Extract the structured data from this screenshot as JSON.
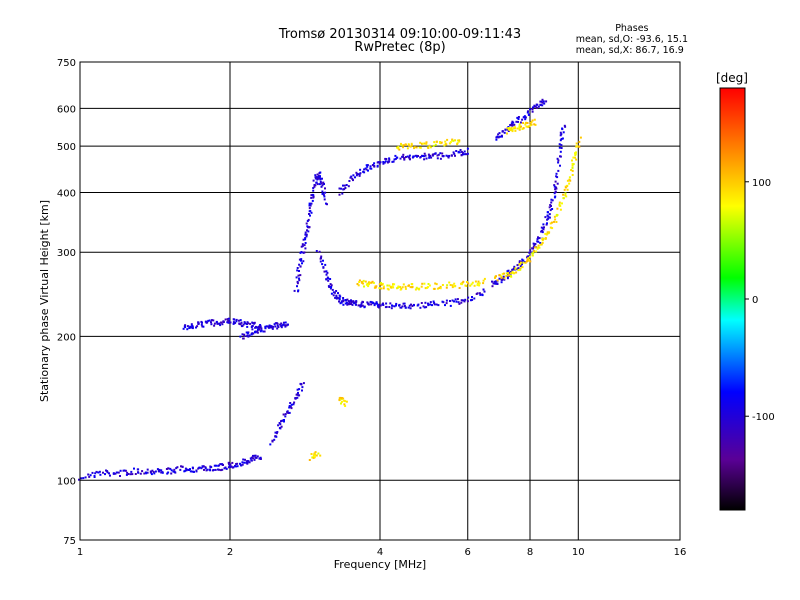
{
  "title": {
    "line1": "Tromsø 20130314 09:10:00-09:11:43",
    "line2": "RwPretec (8p)"
  },
  "phases": {
    "heading": "Phases",
    "o_mode": "mean, sd,O: -93.6, 15.1",
    "x_mode": "mean, sd,X:  86.7, 16.9"
  },
  "chart_data": {
    "type": "scatter",
    "xlabel": "Frequency [MHz]",
    "ylabel": "Stationary phase Virtual Height [km]",
    "xscale": "log",
    "yscale": "log",
    "xlim": [
      1,
      16
    ],
    "ylim": [
      75,
      750
    ],
    "xticks": [
      1,
      2,
      4,
      6,
      8,
      10,
      16
    ],
    "yticks": [
      75,
      100,
      200,
      300,
      400,
      500,
      600,
      750
    ],
    "grid": true,
    "colorbar": {
      "label": "[deg]",
      "range": [
        -180,
        180
      ],
      "ticks": [
        -100,
        0,
        100
      ],
      "colors": [
        "#000000",
        "#5a0096",
        "#0000ff",
        "#00ffff",
        "#00ff00",
        "#ffff00",
        "#ff0000"
      ]
    },
    "series": [
      {
        "mode": "O",
        "color_phase": -100,
        "segments": [
          {
            "x": [
              1.0,
              1.1,
              1.2,
              1.3,
              1.4,
              1.5,
              1.6,
              1.7,
              1.8,
              1.9,
              2.0,
              2.1,
              2.2,
              2.3
            ],
            "y": [
              102,
              104,
              104,
              105,
              105,
              105,
              106,
              106,
              106,
              107,
              108,
              109,
              111,
              113
            ]
          },
          {
            "x": [
              2.4,
              2.5,
              2.6,
              2.7,
              2.8
            ],
            "y": [
              120,
              130,
              140,
              150,
              160
            ]
          },
          {
            "x": [
              1.6,
              1.7,
              1.8,
              1.9,
              2.0,
              2.1,
              2.2,
              2.3
            ],
            "y": [
              210,
              212,
              214,
              215,
              216,
              214,
              212,
              210
            ]
          },
          {
            "x": [
              2.1,
              2.2,
              2.3,
              2.4,
              2.5,
              2.6
            ],
            "y": [
              200,
              205,
              208,
              210,
              212,
              215
            ]
          },
          {
            "x": [
              3.0,
              3.1,
              3.2,
              3.3,
              3.4,
              3.5,
              3.6,
              3.8,
              4.0,
              4.3,
              4.6,
              5.0,
              5.5,
              6.0,
              6.5
            ],
            "y": [
              300,
              270,
              250,
              240,
              237,
              236,
              235,
              234,
              234,
              233,
              233,
              234,
              236,
              240,
              250
            ]
          },
          {
            "x": [
              6.7,
              7.0,
              7.3,
              7.6,
              8.0,
              8.3,
              8.6,
              8.8,
              9.0,
              9.2,
              9.3
            ],
            "y": [
              258,
              265,
              275,
              285,
              300,
              320,
              350,
              380,
              420,
              500,
              560
            ]
          },
          {
            "x": [
              3.3,
              3.5,
              3.7,
              3.9,
              4.1,
              4.4,
              4.7,
              5.0,
              5.3,
              5.7,
              6.0
            ],
            "y": [
              400,
              430,
              450,
              460,
              470,
              475,
              478,
              478,
              480,
              485,
              490
            ]
          },
          {
            "x": [
              2.7,
              2.75,
              2.8,
              2.85,
              2.9,
              2.95,
              3.0,
              3.05,
              3.1
            ],
            "y": [
              250,
              280,
              310,
              340,
              380,
              420,
              440,
              420,
              380
            ]
          },
          {
            "x": [
              6.8,
              7.1,
              7.4,
              7.8,
              8.2,
              8.6
            ],
            "y": [
              520,
              540,
              560,
              580,
              610,
              625
            ]
          }
        ]
      },
      {
        "mode": "X",
        "color_phase": 90,
        "segments": [
          {
            "x": [
              3.6,
              3.8,
              4.0,
              4.3,
              4.6,
              5.0,
              5.5,
              6.0,
              6.5
            ],
            "y": [
              260,
              258,
              256,
              255,
              255,
              256,
              257,
              258,
              262
            ]
          },
          {
            "x": [
              6.8,
              7.2,
              7.6,
              8.0,
              8.4,
              8.8,
              9.2,
              9.5,
              9.8,
              10.0
            ],
            "y": [
              265,
              270,
              280,
              295,
              315,
              340,
              380,
              420,
              470,
              520
            ]
          },
          {
            "x": [
              4.3,
              4.6,
              5.0,
              5.4,
              5.8
            ],
            "y": [
              500,
              505,
              505,
              510,
              515
            ]
          },
          {
            "x": [
              7.2,
              7.5,
              7.8,
              8.2
            ],
            "y": [
              540,
              548,
              555,
              565
            ]
          },
          {
            "x": [
              3.3,
              3.4
            ],
            "y": [
              150,
              145
            ]
          },
          {
            "x": [
              2.9,
              3.0
            ],
            "y": [
              112,
              115
            ]
          }
        ]
      }
    ]
  }
}
